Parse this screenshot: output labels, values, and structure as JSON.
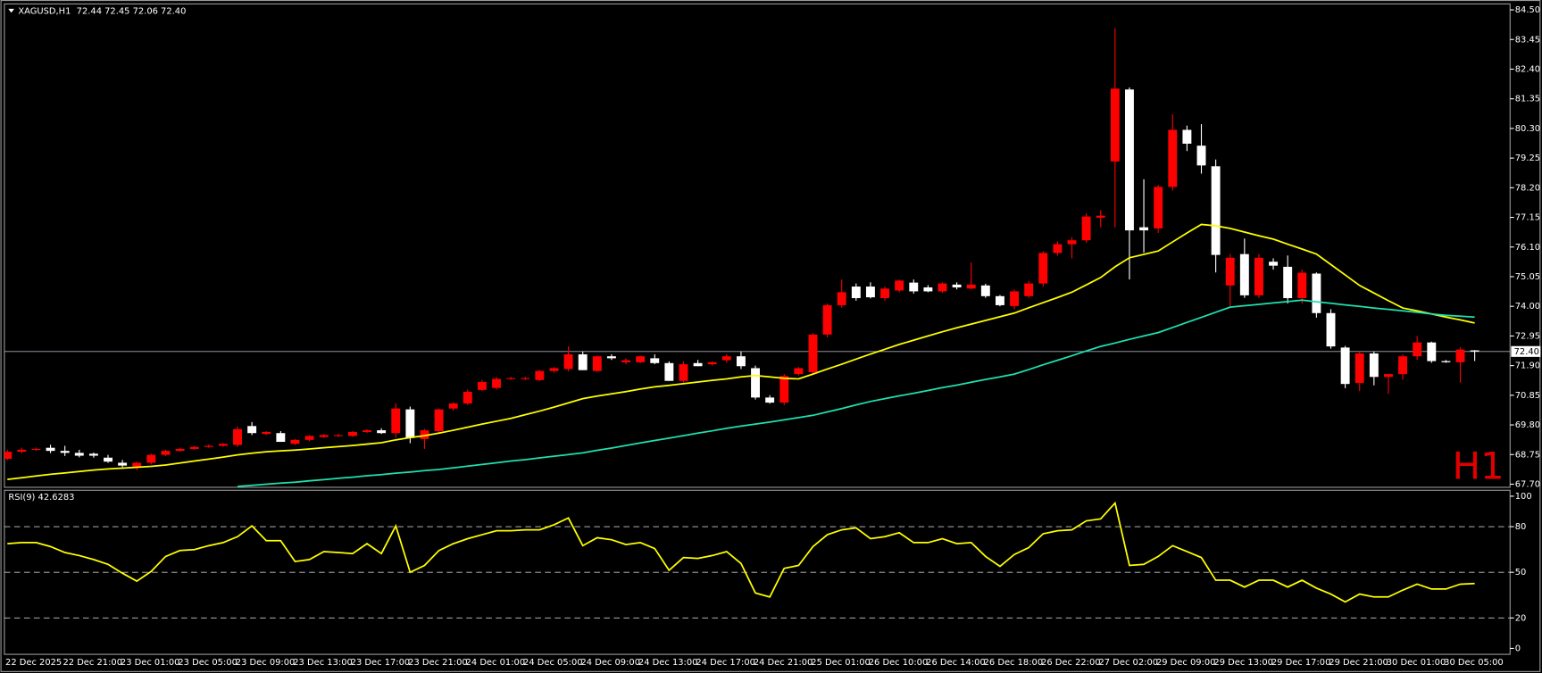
{
  "chart_data": [
    {
      "type": "candlestick",
      "title": "XAGUSD,H1  72.44 72.45 72.06 72.40",
      "watermark": "H1",
      "categories": [
        "22 Dec 2025",
        null,
        null,
        null,
        "22 Dec 21:00",
        null,
        null,
        null,
        "23 Dec 01:00",
        null,
        null,
        null,
        "23 Dec 05:00",
        null,
        null,
        null,
        "23 Dec 09:00",
        null,
        null,
        null,
        "23 Dec 13:00",
        null,
        null,
        null,
        "23 Dec 17:00",
        null,
        null,
        null,
        "23 Dec 21:00",
        null,
        null,
        null,
        "24 Dec 01:00",
        null,
        null,
        null,
        "24 Dec 05:00",
        null,
        null,
        null,
        "24 Dec 09:00",
        null,
        null,
        null,
        "24 Dec 13:00",
        null,
        null,
        null,
        "24 Dec 17:00",
        null,
        null,
        null,
        "24 Dec 21:00",
        null,
        null,
        null,
        "25 Dec 01:00",
        null,
        null,
        null,
        "26 Dec 10:00",
        null,
        null,
        null,
        "26 Dec 14:00",
        null,
        null,
        null,
        "26 Dec 18:00",
        null,
        null,
        null,
        "26 Dec 22:00",
        null,
        null,
        null,
        "27 Dec 02:00",
        null,
        null,
        null,
        "29 Dec 09:00",
        null,
        null,
        null,
        "29 Dec 13:00",
        null,
        null,
        null,
        "29 Dec 17:00",
        null,
        null,
        null,
        "29 Dec 21:00",
        null,
        null,
        null,
        "30 Dec 01:00",
        null,
        null,
        null,
        "30 Dec 05:00",
        null,
        null
      ],
      "open": [
        68.6,
        68.85,
        68.92,
        68.99,
        68.88,
        68.81,
        68.78,
        68.64,
        68.46,
        68.32,
        68.46,
        68.74,
        68.88,
        68.95,
        69.02,
        69.06,
        69.09,
        69.76,
        69.48,
        69.51,
        69.13,
        69.27,
        69.37,
        69.41,
        69.41,
        69.55,
        69.61,
        69.51,
        70.35,
        69.3,
        69.58,
        70.38,
        70.56,
        71.04,
        71.11,
        71.43,
        71.43,
        71.39,
        71.71,
        71.78,
        72.3,
        71.71,
        72.23,
        72.02,
        72.02,
        72.16,
        71.99,
        71.36,
        71.99,
        71.95,
        72.09,
        72.23,
        71.81,
        70.77,
        70.59,
        71.6,
        71.67,
        73.0,
        74.04,
        74.7,
        74.7,
        74.29,
        74.56,
        74.84,
        74.67,
        74.53,
        74.77,
        74.63,
        74.74,
        74.36,
        74.01,
        74.36,
        74.81,
        75.89,
        76.2,
        76.34,
        77.14,
        79.13,
        81.68,
        76.8,
        76.76,
        78.23,
        80.25,
        79.69,
        78.96,
        74.74,
        75.85,
        74.39,
        75.58,
        75.4,
        74.29,
        75.16,
        73.76,
        72.54,
        71.29,
        72.33,
        71.5,
        71.6,
        72.23,
        72.72,
        72.06,
        72.02,
        72.44
      ],
      "high": [
        68.92,
        68.99,
        69.0,
        69.1,
        69.06,
        68.92,
        68.82,
        68.74,
        68.56,
        68.5,
        68.78,
        68.92,
        68.99,
        69.06,
        69.1,
        69.16,
        69.75,
        69.9,
        69.58,
        69.58,
        69.3,
        69.44,
        69.48,
        69.48,
        69.58,
        69.65,
        69.68,
        70.56,
        70.45,
        69.66,
        70.38,
        70.6,
        71.05,
        71.4,
        71.5,
        71.5,
        71.5,
        71.75,
        71.85,
        72.58,
        72.4,
        72.25,
        72.3,
        72.16,
        72.25,
        72.3,
        72.05,
        72.05,
        72.1,
        72.05,
        72.3,
        72.4,
        71.9,
        70.85,
        71.6,
        71.85,
        73.05,
        74.1,
        74.95,
        74.81,
        74.85,
        74.7,
        74.95,
        74.95,
        74.75,
        74.85,
        74.85,
        75.55,
        74.8,
        74.4,
        74.6,
        74.9,
        75.95,
        76.3,
        76.45,
        77.3,
        77.4,
        83.85,
        81.75,
        78.5,
        78.3,
        80.8,
        80.4,
        80.45,
        79.2,
        75.85,
        76.4,
        75.85,
        75.7,
        75.8,
        75.3,
        75.2,
        73.9,
        72.6,
        72.4,
        72.4,
        71.6,
        72.3,
        72.95,
        72.75,
        72.1,
        72.55,
        72.45
      ],
      "low": [
        68.55,
        68.8,
        68.88,
        68.8,
        68.7,
        68.65,
        68.64,
        68.46,
        68.3,
        68.2,
        68.4,
        68.7,
        68.85,
        68.92,
        68.99,
        69.02,
        69.02,
        69.44,
        69.44,
        69.2,
        69.09,
        69.23,
        69.34,
        69.37,
        69.37,
        69.52,
        69.48,
        69.34,
        69.15,
        68.95,
        69.5,
        70.3,
        70.5,
        71.0,
        71.05,
        71.4,
        71.38,
        71.35,
        71.65,
        71.7,
        71.74,
        71.68,
        72.1,
        71.95,
        71.98,
        71.95,
        71.36,
        71.3,
        71.88,
        71.9,
        72.0,
        71.78,
        70.7,
        70.55,
        70.5,
        71.55,
        71.6,
        72.9,
        73.95,
        74.2,
        74.28,
        74.2,
        74.5,
        74.45,
        74.5,
        74.48,
        74.6,
        74.6,
        74.3,
        74.0,
        73.9,
        74.3,
        74.7,
        75.8,
        75.7,
        76.25,
        76.8,
        76.8,
        74.95,
        75.9,
        76.6,
        78.1,
        79.5,
        78.7,
        75.2,
        73.95,
        74.3,
        74.3,
        75.3,
        74.1,
        74.1,
        73.6,
        72.5,
        71.1,
        71.0,
        71.2,
        70.9,
        71.4,
        72.1,
        72.0,
        72.0,
        71.3,
        72.06
      ],
      "close": [
        68.85,
        68.92,
        68.95,
        68.88,
        68.81,
        68.71,
        68.71,
        68.5,
        68.36,
        68.46,
        68.74,
        68.88,
        68.95,
        69.02,
        69.06,
        69.13,
        69.65,
        69.51,
        69.55,
        69.2,
        69.27,
        69.41,
        69.44,
        69.44,
        69.55,
        69.61,
        69.51,
        70.38,
        69.34,
        69.61,
        70.35,
        70.56,
        70.97,
        71.32,
        71.43,
        71.46,
        71.46,
        71.71,
        71.81,
        72.3,
        71.74,
        72.23,
        72.16,
        72.09,
        72.23,
        71.99,
        71.36,
        71.95,
        71.88,
        72.02,
        72.23,
        71.88,
        70.77,
        70.59,
        71.53,
        71.81,
        73.0,
        74.04,
        74.5,
        74.29,
        74.32,
        74.63,
        74.91,
        74.53,
        74.53,
        74.81,
        74.67,
        74.77,
        74.36,
        74.04,
        74.53,
        74.81,
        75.89,
        76.2,
        76.34,
        77.18,
        77.21,
        81.71,
        76.69,
        76.69,
        78.23,
        80.25,
        79.76,
        78.99,
        75.82,
        75.72,
        74.39,
        75.72,
        75.44,
        74.29,
        75.19,
        73.76,
        72.58,
        71.25,
        72.33,
        71.5,
        71.6,
        72.23,
        72.72,
        72.06,
        72.02,
        72.47,
        72.4
      ],
      "up_color": "#ff0000",
      "down_color": "#ffffff",
      "lines": [
        {
          "color": "#ffff00",
          "values": [
            67.87,
            67.93,
            67.99,
            68.05,
            68.1,
            68.15,
            68.2,
            68.24,
            68.27,
            68.3,
            68.33,
            68.38,
            68.45,
            68.52,
            68.59,
            68.66,
            68.74,
            68.8,
            68.85,
            68.88,
            68.91,
            68.95,
            68.99,
            69.03,
            69.07,
            69.12,
            69.17,
            69.27,
            69.35,
            69.42,
            69.51,
            69.61,
            69.72,
            69.83,
            69.93,
            70.03,
            70.16,
            70.29,
            70.43,
            70.58,
            70.73,
            70.82,
            70.9,
            70.98,
            71.07,
            71.15,
            71.2,
            71.26,
            71.32,
            71.38,
            71.43,
            71.5,
            71.55,
            71.5,
            71.45,
            71.43,
            71.6,
            71.78,
            71.95,
            72.13,
            72.31,
            72.48,
            72.65,
            72.8,
            72.95,
            73.1,
            73.24,
            73.37,
            73.5,
            73.63,
            73.76,
            73.95,
            74.13,
            74.31,
            74.5,
            74.76,
            75.02,
            75.4,
            75.72,
            75.84,
            75.96,
            76.28,
            76.6,
            76.9,
            76.85,
            76.76,
            76.63,
            76.5,
            76.38,
            76.2,
            76.03,
            75.85,
            75.48,
            75.11,
            74.74,
            74.47,
            74.2,
            73.94,
            73.84,
            73.73,
            73.62,
            73.52,
            73.41
          ]
        },
        {
          "color": "#20e0b0",
          "values": [
            null,
            null,
            null,
            null,
            null,
            null,
            null,
            null,
            null,
            null,
            null,
            null,
            null,
            null,
            null,
            null,
            67.62,
            67.66,
            67.7,
            67.74,
            67.77,
            67.82,
            67.86,
            67.91,
            67.95,
            68.0,
            68.04,
            68.09,
            68.13,
            68.18,
            68.22,
            68.28,
            68.34,
            68.4,
            68.46,
            68.52,
            68.57,
            68.63,
            68.69,
            68.75,
            68.81,
            68.9,
            68.98,
            69.07,
            69.16,
            69.25,
            69.33,
            69.42,
            69.51,
            69.59,
            69.68,
            69.76,
            69.83,
            69.9,
            69.98,
            70.06,
            70.14,
            70.26,
            70.38,
            70.51,
            70.63,
            70.73,
            70.83,
            70.92,
            71.02,
            71.12,
            71.21,
            71.31,
            71.41,
            71.5,
            71.6,
            71.76,
            71.93,
            72.09,
            72.25,
            72.42,
            72.58,
            72.7,
            72.83,
            72.95,
            73.07,
            73.25,
            73.43,
            73.61,
            73.79,
            73.97,
            74.02,
            74.07,
            74.12,
            74.17,
            74.22,
            74.16,
            74.11,
            74.05,
            74.0,
            73.94,
            73.89,
            73.84,
            73.79,
            73.73,
            73.68,
            73.65,
            73.62
          ]
        }
      ],
      "current_price": {
        "value": 72.4,
        "label": "72.40"
      },
      "ylim": [
        67.59,
        84.71
      ],
      "yticks": [
        {
          "value": 84.5,
          "label": "84.50"
        },
        83.45,
        {
          "value": 82.4,
          "label": "82.40"
        },
        81.35,
        {
          "value": 80.3,
          "label": "80.30"
        },
        79.25,
        {
          "value": 78.2,
          "label": "78.20"
        },
        77.15,
        {
          "value": 76.1,
          "label": "76.10"
        },
        75.05,
        {
          "value": 74,
          "label": "74.00"
        },
        72.95,
        {
          "value": 71.9,
          "label": "71.90"
        },
        70.85,
        {
          "value": 69.8,
          "label": "69.80"
        },
        68.75,
        {
          "value": 67.7,
          "label": "67.70"
        }
      ]
    },
    {
      "type": "line",
      "title": "RSI(9) 42.6283",
      "color": "#ffff00",
      "values": [
        68.8,
        69.5,
        69.5,
        66.9,
        63.0,
        61.0,
        58.4,
        55.2,
        49.4,
        44.2,
        50.6,
        60.4,
        64.3,
        64.9,
        67.5,
        69.5,
        73.4,
        80.5,
        70.8,
        70.8,
        57.1,
        58.4,
        63.6,
        63.0,
        62.3,
        68.8,
        62.3,
        80.5,
        50.0,
        54.5,
        64.3,
        68.8,
        72.1,
        74.7,
        77.3,
        77.3,
        77.9,
        77.9,
        81.2,
        85.7,
        67.5,
        72.7,
        71.4,
        68.2,
        69.5,
        65.6,
        51.3,
        59.7,
        59.1,
        61.0,
        63.6,
        55.8,
        36.4,
        33.8,
        52.6,
        54.5,
        66.9,
        74.7,
        77.9,
        79.2,
        72.1,
        73.4,
        76.0,
        69.5,
        69.5,
        72.1,
        68.8,
        69.5,
        60.4,
        53.9,
        61.7,
        66.2,
        75.3,
        77.3,
        77.9,
        83.8,
        85.1,
        95.5,
        54.5,
        55.2,
        60.4,
        67.5,
        63.6,
        59.7,
        44.8,
        44.8,
        40.3,
        44.8,
        44.8,
        40.3,
        44.8,
        39.6,
        35.7,
        30.5,
        35.7,
        33.8,
        33.8,
        38.3,
        42.2,
        39.0,
        39.0,
        42.2,
        42.6283
      ],
      "ylim": [
        -3.9,
        103.9
      ],
      "yticks": [
        0,
        20,
        50,
        80,
        100
      ],
      "dashed_levels": [
        20,
        50,
        80
      ]
    }
  ]
}
